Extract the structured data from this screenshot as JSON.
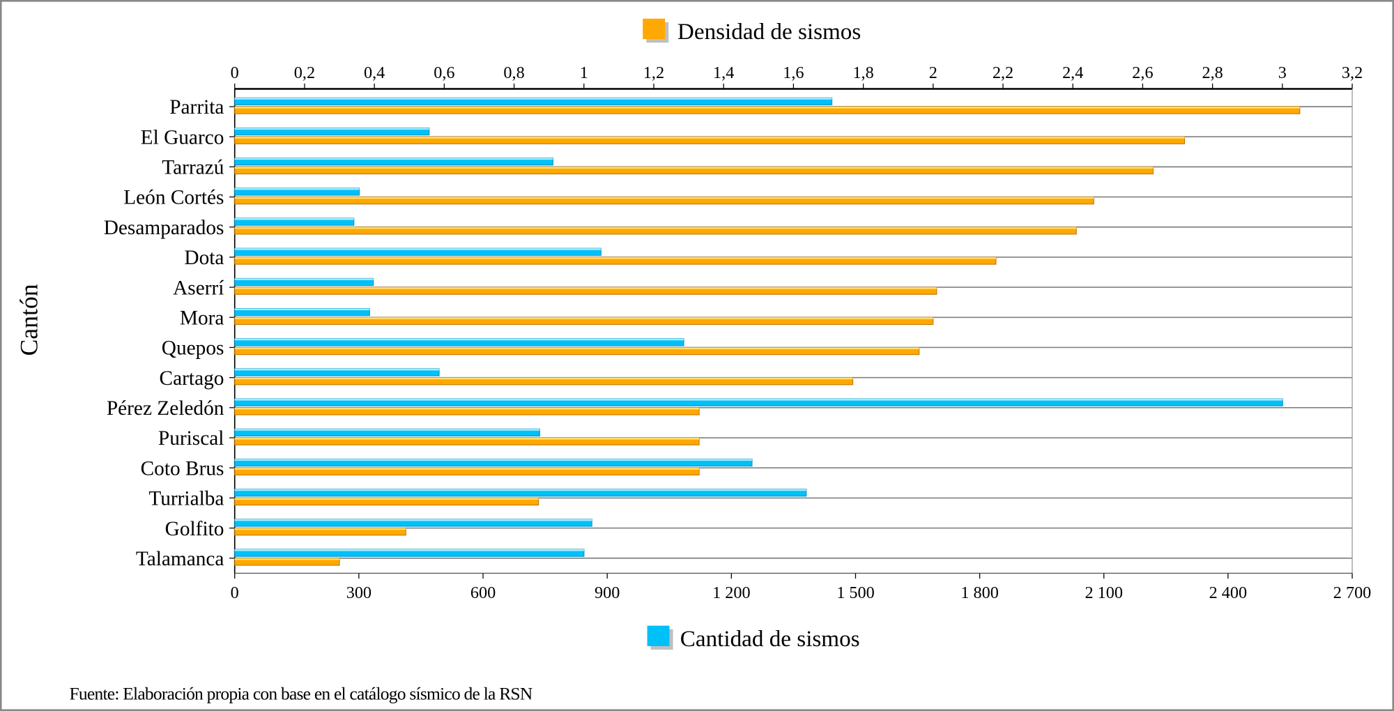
{
  "chart_data": {
    "type": "bar",
    "orientation": "horizontal",
    "ylabel": "Cantón",
    "source": "Fuente: Elaboración propia con base en el catálogo sísmico de la RSN",
    "categories": [
      "Parrita",
      "El Guarco",
      "Tarrazú",
      "León Cortés",
      "Desamparados",
      "Dota",
      "Aserrí",
      "Mora",
      "Quepos",
      "Cartago",
      "Pérez Zeledón",
      "Puriscal",
      "Coto Brus",
      "Turrialba",
      "Golfito",
      "Talamanca"
    ],
    "series": [
      {
        "name": "Cantidad de sismos",
        "axis": "bottom",
        "color": "#00c0f8",
        "values": [
          1443,
          470,
          769,
          301,
          288,
          885,
          335,
          326,
          1085,
          494,
          2532,
          737,
          1250,
          1381,
          863,
          844
        ]
      },
      {
        "name": "Densidad de sismos",
        "axis": "top",
        "color": "#ffa800",
        "values": [
          3.05,
          2.72,
          2.63,
          2.46,
          2.41,
          2.18,
          2.01,
          2.0,
          1.96,
          1.77,
          1.33,
          1.33,
          1.33,
          0.87,
          0.49,
          0.3
        ]
      }
    ],
    "top_axis": {
      "range": [
        0,
        3.2
      ],
      "ticks": [
        "0",
        "0,2",
        "0,4",
        "0,6",
        "0,8",
        "1",
        "1,2",
        "1,4",
        "1,6",
        "1,8",
        "2",
        "2,2",
        "2,4",
        "2,6",
        "2,8",
        "3",
        "3,2"
      ]
    },
    "bottom_axis": {
      "range": [
        0,
        2700
      ],
      "ticks": [
        "0",
        "300",
        "600",
        "900",
        "1 200",
        "1 500",
        "1 800",
        "2 100",
        "2 400",
        "2 700"
      ]
    },
    "grid": "horizontal",
    "legend": {
      "top": "Densidad de sismos",
      "bottom": "Cantidad de sismos"
    }
  }
}
